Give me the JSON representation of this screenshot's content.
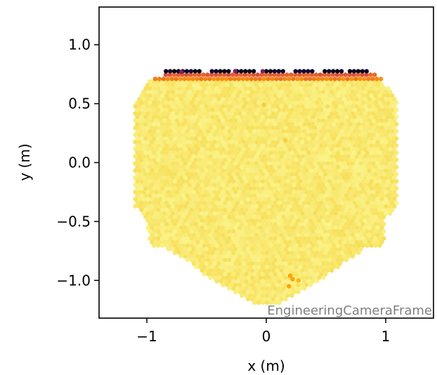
{
  "chart_data": {
    "type": "heatmap",
    "subtype": "hexagonal camera pixel display",
    "xlabel": "x  (m)",
    "ylabel": "y  (m)",
    "xlim": [
      -1.4,
      1.4
    ],
    "ylim": [
      -1.32,
      1.32
    ],
    "x_ticks": [
      -1,
      0,
      1
    ],
    "x_tick_labels": [
      "−1",
      "0",
      "1"
    ],
    "y_ticks": [
      1.0,
      0.5,
      0.0,
      -0.5,
      -1.0
    ],
    "y_tick_labels": [
      "1.0",
      "0.5",
      "0.0",
      "−0.5",
      "−1.0"
    ],
    "frame_label": "EngineeringCameraFrame",
    "grid": false,
    "colormap": "inferno",
    "camera_outline": [
      [
        -1.1,
        0.5
      ],
      [
        -0.97,
        0.7
      ],
      [
        0.97,
        0.7
      ],
      [
        1.1,
        0.52
      ],
      [
        1.1,
        -0.37
      ],
      [
        1.0,
        -0.48
      ],
      [
        0.98,
        -0.7
      ],
      [
        0.85,
        -0.72
      ],
      [
        0.65,
        -0.85
      ],
      [
        0.45,
        -1.0
      ],
      [
        0.1,
        -1.2
      ],
      [
        -0.1,
        -1.2
      ],
      [
        -0.45,
        -1.0
      ],
      [
        -0.65,
        -0.85
      ],
      [
        -0.85,
        -0.72
      ],
      [
        -0.98,
        -0.7
      ],
      [
        -1.0,
        -0.48
      ],
      [
        -1.1,
        -0.37
      ]
    ],
    "pixel_spacing_m": 0.035,
    "background_value": 0.97,
    "top_rows": [
      {
        "y": 0.71,
        "x_range": [
          -0.93,
          0.97
        ],
        "value": 0.72
      },
      {
        "y": 0.745,
        "x_range": [
          -0.86,
          0.92
        ],
        "value": 0.62
      },
      {
        "y": 0.775,
        "x_range": [
          -0.84,
          0.85
        ],
        "value": 0.06
      }
    ],
    "top_row_gaps_x": [
      -0.5,
      -0.28,
      -0.05,
      0.19,
      0.43,
      0.66
    ],
    "highlight_pixels": [
      {
        "x": -0.71,
        "y": 0.77,
        "value": 0.35
      },
      {
        "x": -0.26,
        "y": 0.775,
        "value": 0.35
      },
      {
        "x": -0.03,
        "y": 0.775,
        "value": 0.35
      },
      {
        "x": -0.02,
        "y": 0.49,
        "value": 0.88
      },
      {
        "x": 0.16,
        "y": 0.19,
        "value": 0.88
      },
      {
        "x": 0.2,
        "y": -0.96,
        "value": 0.8
      },
      {
        "x": 0.22,
        "y": -0.99,
        "value": 0.8
      },
      {
        "x": 0.19,
        "y": -1.05,
        "value": 0.8
      },
      {
        "x": 0.27,
        "y": -1.0,
        "value": 0.83
      }
    ]
  }
}
